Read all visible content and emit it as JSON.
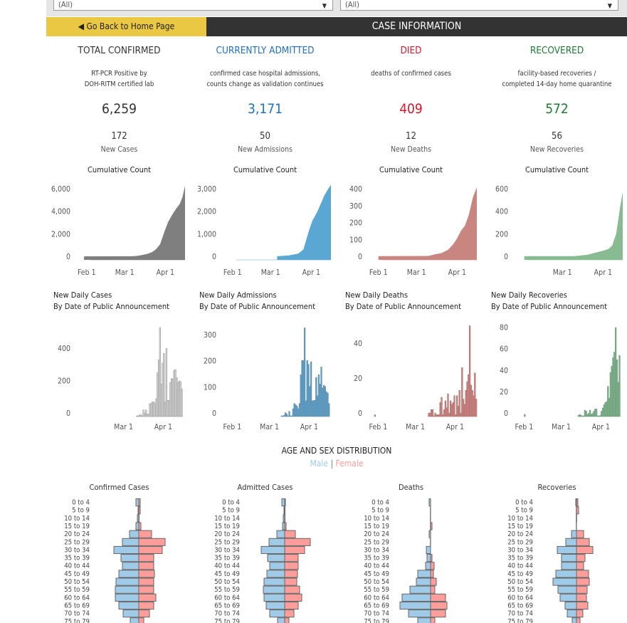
{
  "filters": [
    {
      "value": "(All)"
    },
    {
      "value": "(All)"
    }
  ],
  "nav": {
    "back_label": "◀ Go Back to Home Page",
    "header": "CASE INFORMATION"
  },
  "colors": {
    "confirmed": "#333333",
    "admitted": "#1f6fc8",
    "died": "#d6172d",
    "recovered": "#1e7b34",
    "male": "#9fcbe8",
    "female": "#ff9d9a"
  },
  "panels": [
    {
      "title": "TOTAL CONFIRMED",
      "desc1": "RT-PCR Positive by",
      "desc2": "DOH-RITM certified lab",
      "total": "6,259",
      "new_value": "172",
      "new_label": "New Cases",
      "cum_title": "Cumulative Count",
      "daily_title1": "New Daily Cases",
      "daily_title2": "By Date of Public Announcement",
      "pyramid_title": "Confirmed Cases"
    },
    {
      "title": "CURRENTLY ADMITTED",
      "desc1": "confirmed case hospital admissions,",
      "desc2": "counts change as validation continues",
      "total": "3,171",
      "new_value": "50",
      "new_label": "New Admissions",
      "cum_title": "Cumulative Count",
      "daily_title1": "New Daily Admissions",
      "daily_title2": "By Date of Public Announcement",
      "pyramid_title": "Admitted Cases"
    },
    {
      "title": "DIED",
      "desc1": "deaths of confirmed cases",
      "desc2": "",
      "total": "409",
      "new_value": "12",
      "new_label": "New Deaths",
      "cum_title": "Cumulative Count",
      "daily_title1": "New Daily Deaths",
      "daily_title2": "By Date of Public Announcement",
      "pyramid_title": "Deaths"
    },
    {
      "title": "RECOVERED",
      "desc1": "facility-based recoveries /",
      "desc2": "completed 14-day home quarantine",
      "total": "572",
      "new_value": "56",
      "new_label": "New Recoveries",
      "cum_title": "Cumulative Count",
      "daily_title1": "New Daily Recoveries",
      "daily_title2": "By Date of Public Announcement",
      "pyramid_title": "Recoveries"
    }
  ],
  "age_section": {
    "title": "AGE AND SEX DISTRIBUTION",
    "male": "Male",
    "sep": "|",
    "female": "Female"
  },
  "chart_data": [
    {
      "type": "area",
      "panel": "confirmed",
      "color": "#7f7f7f",
      "x_domain": [
        "2020-01-24",
        "2020-04-16"
      ],
      "x_ticks": [
        [
          "2020-02-01",
          "Feb 1"
        ],
        [
          "2020-03-01",
          "Mar 1"
        ],
        [
          "2020-04-01",
          "Apr 1"
        ]
      ],
      "ylim": [
        0,
        6000
      ],
      "y_ticks": [
        [
          0,
          "0"
        ],
        [
          2000,
          "2,000"
        ],
        [
          4000,
          "4,000"
        ],
        [
          6000,
          "6,000"
        ]
      ],
      "points": [
        [
          "2020-01-30",
          1
        ],
        [
          "2020-03-06",
          5
        ],
        [
          "2020-03-10",
          33
        ],
        [
          "2020-03-14",
          111
        ],
        [
          "2020-03-18",
          202
        ],
        [
          "2020-03-22",
          380
        ],
        [
          "2020-03-25",
          636
        ],
        [
          "2020-03-28",
          1075
        ],
        [
          "2020-03-31",
          2084
        ],
        [
          "2020-04-03",
          3018
        ],
        [
          "2020-04-06",
          3660
        ],
        [
          "2020-04-09",
          4195
        ],
        [
          "2020-04-12",
          4648
        ],
        [
          "2020-04-14",
          5223
        ],
        [
          "2020-04-16",
          6259
        ]
      ]
    },
    {
      "type": "area",
      "panel": "admitted",
      "color": "#5ba7d3",
      "x_domain": [
        "2020-01-24",
        "2020-04-16"
      ],
      "x_ticks": [
        [
          "2020-02-01",
          "Feb 1"
        ],
        [
          "2020-03-01",
          "Mar 1"
        ],
        [
          "2020-04-01",
          "Apr 1"
        ]
      ],
      "ylim": [
        0,
        3000
      ],
      "y_ticks": [
        [
          0,
          "0"
        ],
        [
          1000,
          "1,000"
        ],
        [
          2000,
          "2,000"
        ],
        [
          3000,
          "3,000"
        ]
      ],
      "points": [
        [
          "2020-03-06",
          3
        ],
        [
          "2020-03-15",
          40
        ],
        [
          "2020-03-22",
          120
        ],
        [
          "2020-03-26",
          300
        ],
        [
          "2020-03-30",
          1100
        ],
        [
          "2020-04-02",
          1600
        ],
        [
          "2020-04-05",
          1900
        ],
        [
          "2020-04-08",
          2300
        ],
        [
          "2020-04-11",
          2700
        ],
        [
          "2020-04-14",
          3000
        ],
        [
          "2020-04-16",
          3171
        ]
      ]
    },
    {
      "type": "area",
      "panel": "died",
      "color": "#c98580",
      "x_domain": [
        "2020-01-24",
        "2020-04-16"
      ],
      "x_ticks": [
        [
          "2020-02-01",
          "Feb 1"
        ],
        [
          "2020-03-01",
          "Mar 1"
        ],
        [
          "2020-04-01",
          "Apr 1"
        ]
      ],
      "ylim": [
        0,
        400
      ],
      "y_ticks": [
        [
          0,
          "0"
        ],
        [
          100,
          "100"
        ],
        [
          200,
          "200"
        ],
        [
          300,
          "300"
        ],
        [
          400,
          "400"
        ]
      ],
      "points": [
        [
          "2020-02-01",
          1
        ],
        [
          "2020-03-10",
          2
        ],
        [
          "2020-03-15",
          12
        ],
        [
          "2020-03-20",
          19
        ],
        [
          "2020-03-25",
          38
        ],
        [
          "2020-03-29",
          71
        ],
        [
          "2020-04-01",
          107
        ],
        [
          "2020-04-04",
          152
        ],
        [
          "2020-04-07",
          182
        ],
        [
          "2020-04-10",
          247
        ],
        [
          "2020-04-13",
          349
        ],
        [
          "2020-04-16",
          409
        ]
      ]
    },
    {
      "type": "area",
      "panel": "recovered",
      "color": "#88bb91",
      "x_domain": [
        "2020-01-24",
        "2020-04-16"
      ],
      "x_ticks": [
        [
          "2020-03-01",
          "Mar 1"
        ],
        [
          "2020-04-01",
          "Apr 1"
        ]
      ],
      "ylim": [
        0,
        600
      ],
      "y_ticks": [
        [
          0,
          "0"
        ],
        [
          200,
          "200"
        ],
        [
          400,
          "400"
        ],
        [
          600,
          "600"
        ]
      ],
      "points": [
        [
          "2020-02-01",
          1
        ],
        [
          "2020-03-10",
          2
        ],
        [
          "2020-03-20",
          13
        ],
        [
          "2020-03-27",
          35
        ],
        [
          "2020-04-01",
          50
        ],
        [
          "2020-04-05",
          64
        ],
        [
          "2020-04-08",
          96
        ],
        [
          "2020-04-11",
          200
        ],
        [
          "2020-04-14",
          435
        ],
        [
          "2020-04-16",
          572
        ]
      ]
    },
    {
      "type": "bar",
      "panel": "confirmed",
      "color": "#d6d6d6",
      "stroke": "#8a8a8a",
      "x_domain": [
        "2020-01-24",
        "2020-04-18"
      ],
      "x_ticks": [
        [
          "2020-03-01",
          "Mar 1"
        ],
        [
          "2020-04-01",
          "Apr 1"
        ]
      ],
      "ylim": [
        0,
        550
      ],
      "y_ticks": [
        [
          0,
          "0"
        ],
        [
          200,
          "200"
        ],
        [
          400,
          "400"
        ]
      ],
      "start": "2020-03-11",
      "values": [
        1,
        2,
        10,
        10,
        5,
        40,
        20,
        40,
        15,
        15,
        80,
        80,
        90,
        90,
        80,
        110,
        270,
        350,
        550,
        200,
        330,
        390,
        90,
        420,
        100,
        100,
        210,
        235,
        230,
        285,
        290,
        240,
        210,
        220,
        215,
        170
      ]
    },
    {
      "type": "bar",
      "panel": "admitted",
      "color": "#4e9fcf",
      "stroke": "#7a8a96",
      "x_domain": [
        "2020-01-24",
        "2020-04-18"
      ],
      "x_ticks": [
        [
          "2020-02-01",
          "Feb 1"
        ],
        [
          "2020-03-01",
          "Mar 1"
        ],
        [
          "2020-04-01",
          "Apr 1"
        ]
      ],
      "ylim": [
        0,
        341
      ],
      "y_ticks": [
        [
          0,
          "0"
        ],
        [
          100,
          "100"
        ],
        [
          200,
          "200"
        ],
        [
          300,
          "300"
        ]
      ],
      "start": "2020-03-10",
      "values": [
        1,
        1,
        5,
        15,
        10,
        1,
        20,
        3,
        3,
        30,
        50,
        45,
        40,
        30,
        50,
        160,
        215,
        215,
        340,
        60,
        215,
        200,
        115,
        210,
        60,
        62,
        62,
        150,
        80,
        160,
        125,
        190,
        110,
        120,
        115,
        95,
        90,
        50
      ]
    },
    {
      "type": "bar",
      "panel": "died",
      "color": "#d0817c",
      "stroke": "#a07070",
      "x_domain": [
        "2020-01-24",
        "2020-04-18"
      ],
      "x_ticks": [
        [
          "2020-02-01",
          "Feb 1"
        ],
        [
          "2020-03-01",
          "Mar 1"
        ],
        [
          "2020-04-01",
          "Apr 1"
        ]
      ],
      "ylim": [
        0,
        51
      ],
      "y_ticks": [
        [
          0,
          "0"
        ],
        [
          20,
          "20"
        ],
        [
          40,
          "40"
        ]
      ],
      "start": "2020-03-11",
      "values": [
        2,
        2,
        4,
        4,
        0,
        2,
        1,
        1,
        1,
        8,
        11,
        1,
        4,
        9,
        5,
        13,
        2,
        9,
        7,
        8,
        12,
        1,
        12,
        6,
        15,
        2,
        28,
        10,
        7,
        15,
        20,
        24,
        52,
        18,
        15,
        12,
        25,
        10
      ],
      "extra": [
        [
          "2020-01-29",
          1
        ]
      ]
    },
    {
      "type": "bar",
      "panel": "recovered",
      "color": "#7bb48a",
      "stroke": "#6f8f78",
      "x_domain": [
        "2020-01-24",
        "2020-04-18"
      ],
      "x_ticks": [
        [
          "2020-02-01",
          "Feb 1"
        ],
        [
          "2020-03-01",
          "Mar 1"
        ],
        [
          "2020-04-01",
          "Apr 1"
        ]
      ],
      "ylim": [
        0,
        83
      ],
      "y_ticks": [
        [
          0,
          "0"
        ],
        [
          20,
          "20"
        ],
        [
          40,
          "40"
        ],
        [
          60,
          "60"
        ],
        [
          80,
          "80"
        ]
      ],
      "start": "2020-03-14",
      "values": [
        1,
        2,
        1,
        0,
        0,
        6,
        5,
        2,
        3,
        6,
        2,
        3,
        5,
        7,
        7,
        0,
        0,
        1,
        5,
        8,
        11,
        13,
        14,
        28,
        17,
        41,
        47,
        55,
        60,
        83,
        53,
        32,
        57
      ],
      "extra": [
        [
          "2020-02-01",
          2
        ]
      ]
    }
  ],
  "pyramid": {
    "age_groups": [
      "0 to 4",
      "5 to 9",
      "10 to 14",
      "15 to 19",
      "20 to 24",
      "25 to 29",
      "30 to 34",
      "35 to 39",
      "40 to 44",
      "45 to 49",
      "50 to 54",
      "55 to 59",
      "60 to 64",
      "65 to 69",
      "70 to 74",
      "75 to 79"
    ],
    "series": [
      {
        "male": [
          4,
          1,
          2,
          4,
          13,
          23,
          35,
          25,
          23,
          28,
          32,
          33,
          33,
          28,
          22,
          12
        ],
        "female": [
          2,
          2,
          0.5,
          3,
          18,
          37,
          33,
          21,
          21,
          22,
          21,
          21,
          24,
          21,
          15,
          7
        ]
      },
      {
        "male": [
          4,
          1,
          2,
          3,
          11,
          22,
          33,
          24,
          21,
          25,
          29,
          30,
          29,
          26,
          21,
          10
        ],
        "female": [
          1,
          0.5,
          0.5,
          2,
          15,
          36,
          28,
          19,
          19,
          18,
          17,
          21,
          24,
          19,
          13,
          6
        ]
      },
      {
        "male": [
          2,
          0.3,
          0.3,
          0.3,
          2,
          0.3,
          6,
          5,
          7,
          18,
          20,
          29,
          40,
          43,
          31,
          18
        ],
        "female": [
          0,
          0,
          0,
          2,
          0,
          0,
          0,
          2,
          5,
          4,
          8,
          6,
          21,
          23,
          21,
          6
        ]
      },
      {
        "male": [
          1,
          0.3,
          0.3,
          0.3,
          7,
          15,
          27,
          21,
          21,
          29,
          33,
          26,
          23,
          16,
          13,
          6
        ],
        "female": [
          2,
          3,
          0.3,
          0,
          10,
          18,
          23,
          12,
          10,
          17,
          18,
          15,
          14,
          16,
          9,
          5
        ]
      }
    ]
  }
}
